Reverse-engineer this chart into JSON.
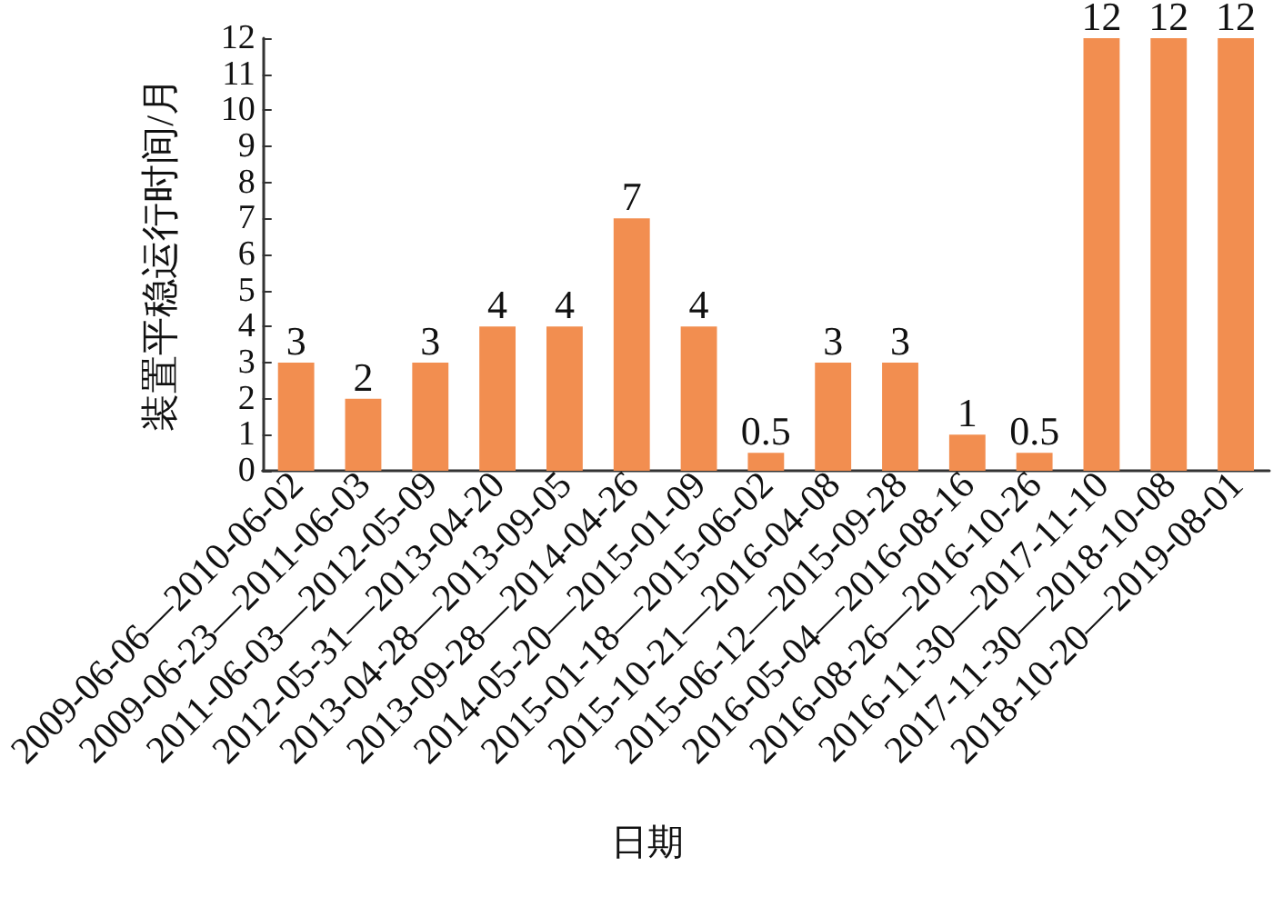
{
  "chart_data": {
    "type": "bar",
    "xlabel": "日期",
    "ylabel": "装置平稳运行时间/月",
    "categories": [
      "2009-06-06—2010-06-02",
      "2009-06-23—2011-06-03",
      "2011-06-03—2012-05-09",
      "2012-05-31—2013-04-20",
      "2013-04-28—2013-09-05",
      "2013-09-28—2014-04-26",
      "2014-05-20—2015-01-09",
      "2015-01-18—2015-06-02",
      "2015-10-21—2016-04-08",
      "2015-06-12—2015-09-28",
      "2016-05-04—2016-08-16",
      "2016-08-26—2016-10-26",
      "2016-11-30—2017-11-10",
      "2017-11-30—2018-10-08",
      "2018-10-20—2019-08-01"
    ],
    "values": [
      3,
      2,
      3,
      4,
      4,
      7,
      4,
      0.5,
      3,
      3,
      1,
      0.5,
      12,
      12,
      12
    ],
    "color": "#f28e50",
    "ylim": [
      0,
      12
    ],
    "yticks": [
      0,
      1,
      2,
      3,
      4,
      5,
      6,
      7,
      8,
      9,
      10,
      11,
      12
    ],
    "grid": false,
    "data_labels": true
  }
}
